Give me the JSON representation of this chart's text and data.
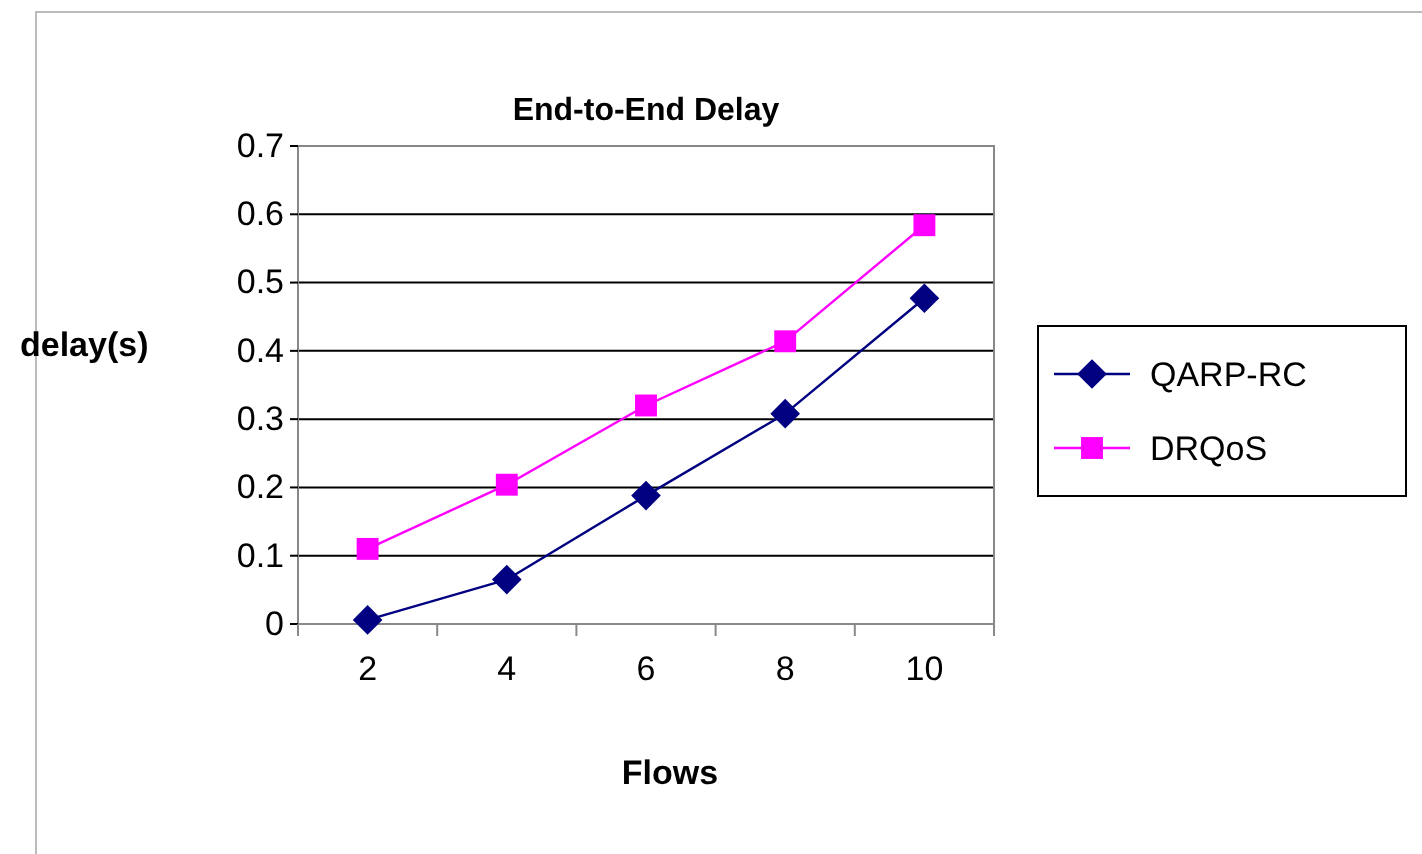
{
  "chart_data": {
    "type": "line",
    "title": "End-to-End Delay",
    "xlabel": "Flows",
    "ylabel": "delay(s)",
    "categories": [
      "2",
      "4",
      "6",
      "8",
      "10"
    ],
    "series": [
      {
        "name": "QARP-RC",
        "color": "#000080",
        "marker": "diamond",
        "values": [
          0.006,
          0.065,
          0.188,
          0.308,
          0.477
        ]
      },
      {
        "name": "DRQoS",
        "color": "#ff00ff",
        "marker": "square",
        "values": [
          0.11,
          0.204,
          0.32,
          0.414,
          0.584
        ]
      }
    ],
    "ylim": [
      0,
      0.7
    ],
    "yticks": [
      0,
      0.1,
      0.2,
      0.3,
      0.4,
      0.5,
      0.6,
      0.7
    ],
    "grid": "y",
    "legend": "right",
    "line_style": "solid"
  }
}
